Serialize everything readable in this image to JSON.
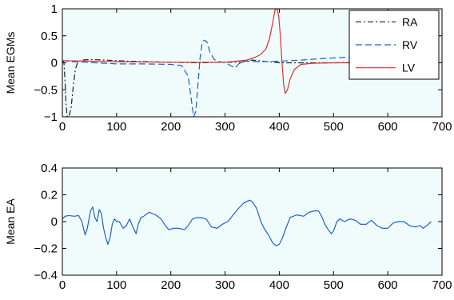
{
  "chart_data": [
    {
      "type": "line",
      "title": "",
      "xlabel": "",
      "ylabel": "Mean EGMs",
      "xlim": [
        0,
        700
      ],
      "ylim": [
        -1,
        1
      ],
      "xticks": [
        "0",
        "100",
        "200",
        "300",
        "400",
        "500",
        "600",
        "700"
      ],
      "yticks": [
        "1",
        "0.5",
        "0",
        "−0.5",
        "−1"
      ],
      "grid": false,
      "background": "#F0FCFC",
      "legend": "top-right",
      "series": [
        {
          "name": "RA",
          "color": "#202020",
          "style": "dashdot",
          "points": [
            [
              0,
              0.05
            ],
            [
              3,
              0.0
            ],
            [
              5,
              -0.35
            ],
            [
              7,
              -0.8
            ],
            [
              9,
              -1.0
            ],
            [
              12,
              -1.0
            ],
            [
              16,
              -0.85
            ],
            [
              20,
              -0.45
            ],
            [
              24,
              -0.12
            ],
            [
              28,
              0.0
            ],
            [
              35,
              0.05
            ],
            [
              50,
              0.06
            ],
            [
              80,
              0.05
            ],
            [
              120,
              0.03
            ],
            [
              160,
              0.02
            ],
            [
              200,
              0.01
            ],
            [
              250,
              0.0
            ],
            [
              300,
              0.01
            ],
            [
              330,
              0.01
            ],
            [
              350,
              0.05
            ],
            [
              370,
              0.03
            ],
            [
              400,
              0.0
            ],
            [
              450,
              0.0
            ],
            [
              500,
              0.0
            ],
            [
              550,
              0.01
            ],
            [
              600,
              0.01
            ],
            [
              650,
              0.02
            ],
            [
              680,
              0.02
            ]
          ]
        },
        {
          "name": "RV",
          "color": "#2060D0",
          "style": "dashed",
          "points": [
            [
              0,
              0.04
            ],
            [
              20,
              0.02
            ],
            [
              40,
              0.01
            ],
            [
              60,
              0.0
            ],
            [
              100,
              -0.02
            ],
            [
              150,
              -0.02
            ],
            [
              200,
              -0.03
            ],
            [
              220,
              -0.05
            ],
            [
              232,
              -0.25
            ],
            [
              238,
              -0.7
            ],
            [
              242,
              -1.0
            ],
            [
              246,
              -0.9
            ],
            [
              250,
              -0.4
            ],
            [
              254,
              0.1
            ],
            [
              258,
              0.38
            ],
            [
              262,
              0.42
            ],
            [
              267,
              0.38
            ],
            [
              272,
              0.2
            ],
            [
              280,
              0.06
            ],
            [
              290,
              0.02
            ],
            [
              300,
              0.0
            ],
            [
              310,
              -0.05
            ],
            [
              318,
              -0.1
            ],
            [
              325,
              -0.02
            ],
            [
              335,
              0.03
            ],
            [
              360,
              0.02
            ],
            [
              400,
              0.03
            ],
            [
              440,
              0.05
            ],
            [
              480,
              0.08
            ],
            [
              520,
              0.1
            ],
            [
              560,
              0.08
            ],
            [
              600,
              0.05
            ],
            [
              640,
              0.04
            ],
            [
              680,
              0.06
            ]
          ]
        },
        {
          "name": "LV",
          "color": "#E0302A",
          "style": "solid",
          "points": [
            [
              0,
              0.04
            ],
            [
              50,
              0.03
            ],
            [
              100,
              0.02
            ],
            [
              200,
              0.01
            ],
            [
              300,
              0.01
            ],
            [
              320,
              0.03
            ],
            [
              340,
              0.05
            ],
            [
              355,
              0.1
            ],
            [
              365,
              0.15
            ],
            [
              375,
              0.25
            ],
            [
              382,
              0.45
            ],
            [
              388,
              0.75
            ],
            [
              392,
              0.98
            ],
            [
              396,
              1.0
            ],
            [
              399,
              0.85
            ],
            [
              402,
              0.5
            ],
            [
              405,
              0.0
            ],
            [
              408,
              -0.4
            ],
            [
              411,
              -0.57
            ],
            [
              415,
              -0.5
            ],
            [
              420,
              -0.3
            ],
            [
              428,
              -0.12
            ],
            [
              440,
              -0.03
            ],
            [
              460,
              -0.01
            ],
            [
              500,
              0.0
            ],
            [
              550,
              0.0
            ],
            [
              580,
              -0.02
            ],
            [
              600,
              -0.05
            ],
            [
              620,
              -0.07
            ],
            [
              640,
              -0.04
            ],
            [
              660,
              -0.02
            ],
            [
              680,
              0.0
            ]
          ]
        }
      ]
    },
    {
      "type": "line",
      "title": "",
      "xlabel": "",
      "ylabel": "Mean EA",
      "xlim": [
        0,
        700
      ],
      "ylim": [
        -0.4,
        0.4
      ],
      "xticks": [
        "0",
        "100",
        "200",
        "300",
        "400",
        "500",
        "600",
        "700"
      ],
      "yticks": [
        "0.4",
        "0.2",
        "0",
        "−0.2",
        "−0.4"
      ],
      "grid": false,
      "background": "#F0FCFC",
      "series": [
        {
          "color": "#2060D0",
          "style": "solid",
          "points": [
            [
              0,
              0.02
            ],
            [
              5,
              0.04
            ],
            [
              12,
              0.045
            ],
            [
              22,
              0.04
            ],
            [
              30,
              0.045
            ],
            [
              36,
              0.0
            ],
            [
              42,
              -0.1
            ],
            [
              46,
              -0.05
            ],
            [
              52,
              0.08
            ],
            [
              56,
              0.11
            ],
            [
              60,
              0.03
            ],
            [
              64,
              0.0
            ],
            [
              68,
              0.09
            ],
            [
              72,
              0.06
            ],
            [
              76,
              -0.05
            ],
            [
              80,
              -0.12
            ],
            [
              84,
              -0.17
            ],
            [
              88,
              -0.12
            ],
            [
              92,
              -0.02
            ],
            [
              96,
              0.02
            ],
            [
              100,
              0.0
            ],
            [
              105,
              0.0
            ],
            [
              112,
              -0.05
            ],
            [
              118,
              -0.03
            ],
            [
              124,
              0.02
            ],
            [
              130,
              -0.04
            ],
            [
              136,
              -0.09
            ],
            [
              140,
              -0.02
            ],
            [
              145,
              0.03
            ],
            [
              150,
              0.04
            ],
            [
              160,
              0.07
            ],
            [
              172,
              0.05
            ],
            [
              182,
              0.02
            ],
            [
              190,
              -0.03
            ],
            [
              196,
              -0.06
            ],
            [
              205,
              -0.05
            ],
            [
              215,
              -0.05
            ],
            [
              225,
              -0.06
            ],
            [
              232,
              -0.03
            ],
            [
              240,
              0.02
            ],
            [
              248,
              0.03
            ],
            [
              255,
              0.03
            ],
            [
              265,
              0.02
            ],
            [
              275,
              -0.04
            ],
            [
              285,
              -0.05
            ],
            [
              295,
              -0.02
            ],
            [
              305,
              0.0
            ],
            [
              315,
              0.05
            ],
            [
              325,
              0.1
            ],
            [
              335,
              0.14
            ],
            [
              345,
              0.16
            ],
            [
              350,
              0.15
            ],
            [
              358,
              0.1
            ],
            [
              366,
              0.0
            ],
            [
              372,
              -0.05
            ],
            [
              380,
              -0.1
            ],
            [
              388,
              -0.16
            ],
            [
              394,
              -0.18
            ],
            [
              400,
              -0.17
            ],
            [
              406,
              -0.12
            ],
            [
              412,
              -0.05
            ],
            [
              420,
              0.03
            ],
            [
              432,
              0.05
            ],
            [
              445,
              0.04
            ],
            [
              455,
              0.07
            ],
            [
              465,
              0.08
            ],
            [
              472,
              0.08
            ],
            [
              478,
              0.04
            ],
            [
              484,
              -0.02
            ],
            [
              490,
              -0.06
            ],
            [
              496,
              -0.09
            ],
            [
              500,
              -0.07
            ],
            [
              506,
              0.0
            ],
            [
              512,
              0.02
            ],
            [
              520,
              0.0
            ],
            [
              530,
              0.02
            ],
            [
              540,
              0.01
            ],
            [
              550,
              -0.02
            ],
            [
              560,
              -0.02
            ],
            [
              570,
              0.01
            ],
            [
              580,
              -0.03
            ],
            [
              590,
              -0.05
            ],
            [
              600,
              -0.05
            ],
            [
              610,
              -0.01
            ],
            [
              620,
              0.0
            ],
            [
              630,
              0.0
            ],
            [
              640,
              -0.03
            ],
            [
              650,
              -0.04
            ],
            [
              660,
              -0.03
            ],
            [
              665,
              -0.05
            ],
            [
              672,
              -0.03
            ],
            [
              680,
              0.0
            ]
          ]
        }
      ]
    }
  ]
}
